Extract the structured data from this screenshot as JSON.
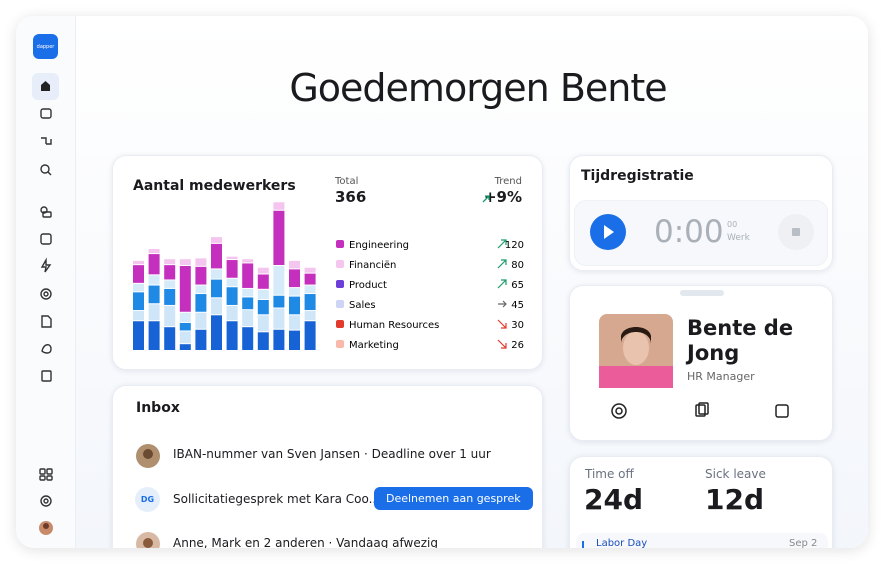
{
  "sidebar": {
    "logo": "dapper"
  },
  "greeting": "Goedemorgen Bente",
  "employees": {
    "title": "Aantal medewerkers",
    "total_label": "Total",
    "total": 366,
    "trend_label": "Trend",
    "trend": "+9%",
    "legend": [
      {
        "name": "Engineering",
        "color": "#c42fbd",
        "value": 120,
        "trend": "up"
      },
      {
        "name": "Financiën",
        "color": "#f4c6ef",
        "value": 80,
        "trend": "up"
      },
      {
        "name": "Product",
        "color": "#6b3fd8",
        "value": 65,
        "trend": "up"
      },
      {
        "name": "Sales",
        "color": "#cdd4f6",
        "value": 45,
        "trend": "flat"
      },
      {
        "name": "Human Resources",
        "color": "#e23a2c",
        "value": 30,
        "trend": "down"
      },
      {
        "name": "Marketing",
        "color": "#f8b9aa",
        "value": 26,
        "trend": "down"
      }
    ],
    "bars": {
      "series": [
        {
          "color": "#1763d6",
          "values": [
            35,
            35,
            28,
            8,
            25,
            42,
            35,
            28,
            22,
            25,
            24,
            35
          ]
        },
        {
          "color": "#cfe6f8",
          "values": [
            12,
            20,
            25,
            15,
            20,
            20,
            18,
            20,
            20,
            25,
            18,
            12
          ]
        },
        {
          "color": "#1e8ae6",
          "values": [
            22,
            22,
            20,
            10,
            22,
            22,
            22,
            15,
            18,
            15,
            22,
            20
          ]
        },
        {
          "color": "#d6ebf9",
          "values": [
            10,
            12,
            10,
            12,
            10,
            12,
            10,
            10,
            12,
            35,
            10,
            10
          ]
        },
        {
          "color": "#c42fbd",
          "values": [
            22,
            25,
            18,
            55,
            22,
            30,
            22,
            30,
            18,
            65,
            22,
            14
          ]
        },
        {
          "color": "#f4c6ef",
          "values": [
            5,
            6,
            7,
            8,
            10,
            8,
            4,
            5,
            8,
            10,
            10,
            7
          ]
        }
      ]
    }
  },
  "timer": {
    "title": "Tijdregistratie",
    "time": "0:00",
    "seconds": "00",
    "mode": "Werk"
  },
  "profile": {
    "name": "Bente de Jong",
    "role": "HR Manager"
  },
  "inbox": {
    "title": "Inbox",
    "items": [
      {
        "text": "IBAN-nummer van Sven Jansen · Deadline over 1 uur"
      },
      {
        "initials": "DG",
        "text": "Sollicitatiegesprek met Kara Coo...",
        "action": "Deelnemen aan gesprek"
      },
      {
        "text": "Anne, Mark en 2 anderen · Vandaag afwezig"
      }
    ]
  },
  "leave": {
    "time_off_label": "Time off",
    "time_off": "24d",
    "sick_label": "Sick leave",
    "sick": "12d",
    "event": "Labor Day",
    "event_date": "Sep 2"
  }
}
